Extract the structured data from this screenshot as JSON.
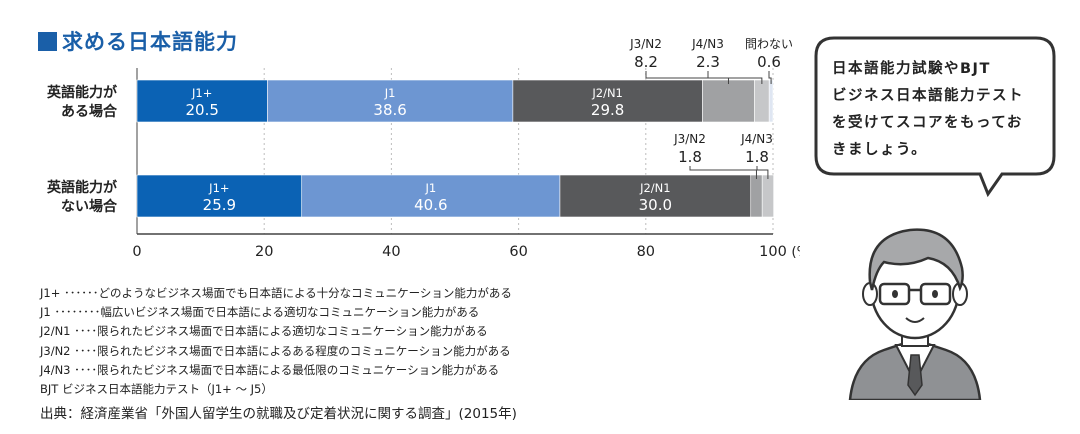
{
  "title": "求める日本語能力",
  "chart_data": {
    "type": "bar",
    "orientation": "horizontal",
    "stacked": true,
    "categories": [
      "英語能力が\nある場合",
      "英語能力が\nない場合"
    ],
    "series": [
      {
        "name": "J1+",
        "values": [
          20.5,
          25.9
        ],
        "color": "#0b62b4"
      },
      {
        "name": "J1",
        "values": [
          38.6,
          40.6
        ],
        "color": "#6d96d2"
      },
      {
        "name": "J2/N1",
        "values": [
          29.8,
          30.0
        ],
        "color": "#58595b"
      },
      {
        "name": "J3/N2",
        "values": [
          8.2,
          1.8
        ],
        "color": "#a0a1a3"
      },
      {
        "name": "J4/N3",
        "values": [
          2.3,
          1.8
        ],
        "color": "#c6c7c9"
      },
      {
        "name": "問わない",
        "values": [
          0.6,
          null
        ],
        "color": "#dfe6f2"
      }
    ],
    "xlim": [
      0,
      100
    ],
    "xticks": [
      "0",
      "20",
      "40",
      "60",
      "80",
      "100"
    ],
    "xunit": "(%)",
    "grid": true,
    "callouts": [
      {
        "name": "J3/N2",
        "value": "8.2",
        "row": 0,
        "series": 3
      },
      {
        "name": "J4/N3",
        "value": "2.3",
        "row": 0,
        "series": 4
      },
      {
        "name": "問わない",
        "value": "0.6",
        "row": 0,
        "series": 5
      },
      {
        "name": "J3/N2",
        "value": "1.8",
        "row": 1,
        "series": 3
      },
      {
        "name": "J4/N3",
        "value": "1.8",
        "row": 1,
        "series": 4
      }
    ]
  },
  "legend": [
    "J1+ ･･････どのようなビジネス場面でも日本語による十分なコミュニケーション能力がある",
    "J1 ････････幅広いビジネス場面で日本語による適切なコミュニケーション能力がある",
    "J2/N1 ････限られたビジネス場面で日本語による適切なコミュニケーション能力がある",
    "J3/N2 ････限られたビジネス場面で日本語によるある程度のコミュニケーション能力がある",
    "J4/N3 ････限られたビジネス場面で日本語による最低限のコミュニケーション能力がある",
    "BJT ビジネス日本語能力テスト（J1+ ～ J5）"
  ],
  "source": "出典：経済産業省「外国人留学生の就職及び定着状況に関する調査」(2015年)",
  "bubble": [
    "日本語能力試験やBJT",
    "ビジネス日本語能力テスト",
    "を受けてスコアをもってお",
    "きましょう。"
  ]
}
